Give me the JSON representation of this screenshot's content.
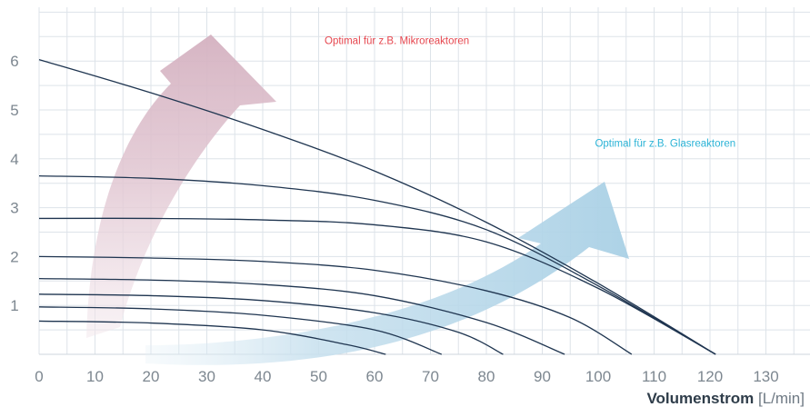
{
  "chart_data": {
    "type": "line",
    "title": "",
    "xlabel": "Volumenstrom",
    "xlabel_unit": "[L/min]",
    "ylabel": "",
    "xlim": [
      0,
      140
    ],
    "ylim": [
      0,
      7
    ],
    "x_ticks": [
      0,
      10,
      20,
      30,
      40,
      50,
      60,
      70,
      80,
      90,
      100,
      110,
      120,
      130
    ],
    "y_ticks": [
      1,
      2,
      3,
      4,
      5,
      6
    ],
    "grid": true,
    "colors": {
      "curves": "#1f3550",
      "grid": "#dde3e9",
      "arrow_red": "#d9b9c6",
      "arrow_blue": "#b3d4e6",
      "annotation_red": "#e6474f",
      "annotation_blue": "#2bb3d6"
    },
    "series": [
      {
        "points": [
          [
            0,
            6.03
          ],
          [
            20,
            5.35
          ],
          [
            40,
            4.6
          ],
          [
            60,
            3.75
          ],
          [
            80,
            2.7
          ],
          [
            100,
            1.45
          ],
          [
            121,
            0.0
          ]
        ]
      },
      {
        "points": [
          [
            0,
            3.65
          ],
          [
            20,
            3.6
          ],
          [
            40,
            3.45
          ],
          [
            60,
            3.15
          ],
          [
            80,
            2.55
          ],
          [
            100,
            1.4
          ],
          [
            121,
            0.0
          ]
        ]
      },
      {
        "points": [
          [
            0,
            2.78
          ],
          [
            20,
            2.78
          ],
          [
            40,
            2.75
          ],
          [
            60,
            2.65
          ],
          [
            80,
            2.3
          ],
          [
            100,
            1.35
          ],
          [
            121,
            0.0
          ]
        ]
      },
      {
        "points": [
          [
            0,
            2.0
          ],
          [
            20,
            1.97
          ],
          [
            40,
            1.9
          ],
          [
            60,
            1.72
          ],
          [
            80,
            1.3
          ],
          [
            95,
            0.75
          ],
          [
            106,
            0.0
          ]
        ]
      },
      {
        "points": [
          [
            0,
            1.55
          ],
          [
            20,
            1.52
          ],
          [
            40,
            1.43
          ],
          [
            60,
            1.2
          ],
          [
            80,
            0.65
          ],
          [
            94,
            0.0
          ]
        ]
      },
      {
        "points": [
          [
            0,
            1.23
          ],
          [
            20,
            1.2
          ],
          [
            40,
            1.1
          ],
          [
            60,
            0.85
          ],
          [
            75,
            0.45
          ],
          [
            83,
            0.0
          ]
        ]
      },
      {
        "points": [
          [
            0,
            0.97
          ],
          [
            20,
            0.93
          ],
          [
            40,
            0.8
          ],
          [
            60,
            0.5
          ],
          [
            72,
            0.0
          ]
        ]
      },
      {
        "points": [
          [
            0,
            0.68
          ],
          [
            20,
            0.64
          ],
          [
            40,
            0.5
          ],
          [
            55,
            0.2
          ],
          [
            62,
            0.0
          ]
        ]
      }
    ],
    "annotations": [
      {
        "text": "Optimal für z.B. Mikroreaktoren",
        "color": "red",
        "x": 64,
        "y": 6.35
      },
      {
        "text": "Optimal für z.B. Glasreaktoren",
        "color": "blue",
        "x": 112,
        "y": 4.25
      }
    ]
  }
}
